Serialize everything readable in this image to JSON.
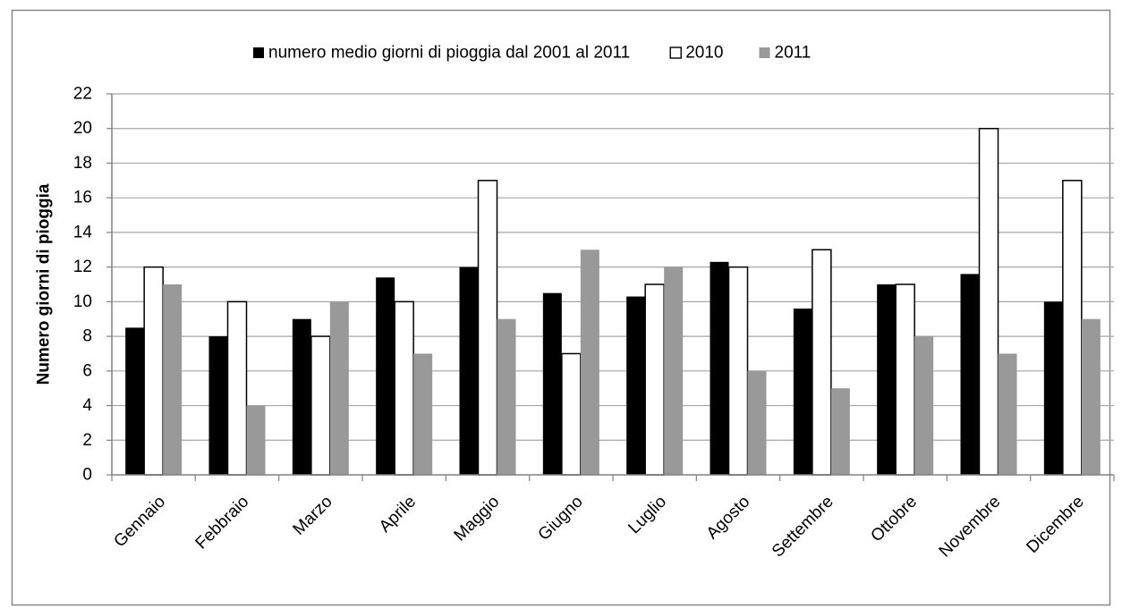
{
  "chart_data": {
    "type": "bar",
    "title": "",
    "xlabel": "",
    "ylabel": "Numero giorni  di pioggia",
    "ylim": [
      0,
      22
    ],
    "ytick_step": 2,
    "grid": true,
    "legend_position": "top",
    "categories": [
      "Gennaio",
      "Febbraio",
      "Marzo",
      "Aprile",
      "Maggio",
      "Giugno",
      "Luglio",
      "Agosto",
      "Settembre",
      "Ottobre",
      "Novembre",
      "Dicembre"
    ],
    "series": [
      {
        "name": "numero medio giorni di pioggia dal 2001 al 2011",
        "color": "#000000",
        "values": [
          8.5,
          8,
          9,
          11.4,
          12,
          10.5,
          10.3,
          12.3,
          9.6,
          11,
          11.6,
          10
        ]
      },
      {
        "name": "2010",
        "color": "#ffffff",
        "values": [
          12,
          10,
          8,
          10,
          17,
          7,
          11,
          12,
          13,
          11,
          20,
          17
        ]
      },
      {
        "name": "2011",
        "color": "#999999",
        "values": [
          11,
          4,
          10,
          7,
          9,
          13,
          12,
          6,
          5,
          8,
          7,
          9
        ]
      }
    ]
  }
}
